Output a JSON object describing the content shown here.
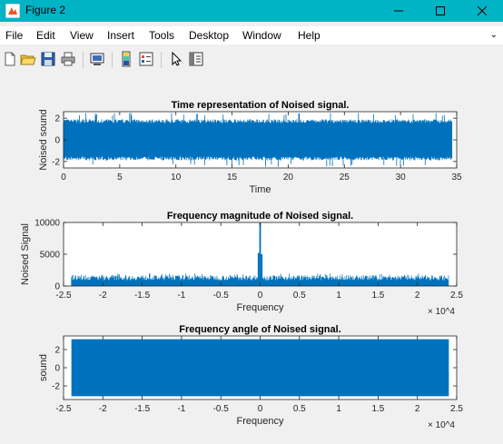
{
  "window": {
    "title": "Figure 2",
    "controls": [
      "minimize",
      "maximize",
      "close"
    ]
  },
  "menu": [
    "File",
    "Edit",
    "View",
    "Insert",
    "Tools",
    "Desktop",
    "Window",
    "Help"
  ],
  "toolbar": [
    "new-figure",
    "open-file",
    "save",
    "print",
    "print-preview",
    "insert-colorbar",
    "insert-legend",
    "edit-plot",
    "property-inspector"
  ],
  "colors": {
    "titlebar": "#00b4c5",
    "series": "#0072bd",
    "axes_bg": "#ffffff"
  },
  "chart_data": [
    {
      "type": "line",
      "title": "Time representation of Noised signal.",
      "xlabel": "Time",
      "ylabel": "Noised sound",
      "xlim": [
        0,
        35
      ],
      "ylim": [
        -2.6,
        2.6
      ],
      "xticks": [
        "0",
        "5",
        "10",
        "15",
        "20",
        "25",
        "30",
        "35"
      ],
      "yticks": [
        "-2",
        "0",
        "2"
      ],
      "series": [
        {
          "description": "dense noise",
          "x_range": [
            0,
            34.6
          ],
          "envelope_min": -2.5,
          "envelope_max": 2.5,
          "typical_band": [
            -1.9,
            1.9
          ]
        }
      ]
    },
    {
      "type": "line",
      "title": "Frequency magnitude of Noised signal.",
      "xlabel": "Frequency",
      "ylabel": "Noised Signal",
      "xlim": [
        -25000,
        25000
      ],
      "ylim": [
        0,
        10000
      ],
      "x_exponent": "× 10^4",
      "xticks": [
        "-2.5",
        "-2",
        "-1.5",
        "-1",
        "-0.5",
        "0",
        "0.5",
        "1",
        "1.5",
        "2",
        "2.5"
      ],
      "yticks": [
        "0",
        "5000",
        "10000"
      ],
      "series": [
        {
          "x_range": [
            -24000,
            24000
          ],
          "noise_floor_max": 2000,
          "peaks": [
            {
              "x": 0,
              "y": 10000
            },
            {
              "x": -200,
              "y": 5200
            },
            {
              "x": 200,
              "y": 5000
            }
          ]
        }
      ]
    },
    {
      "type": "line",
      "title": "Frequency angle of Noised signal.",
      "xlabel": "Frequency",
      "ylabel": "sound",
      "xlim": [
        -25000,
        25000
      ],
      "ylim": [
        -3.5,
        3.5
      ],
      "x_exponent": "× 10^4",
      "xticks": [
        "-2.5",
        "-2",
        "-1.5",
        "-1",
        "-0.5",
        "0",
        "0.5",
        "1",
        "1.5",
        "2",
        "2.5"
      ],
      "yticks": [
        "-2",
        "0",
        "2"
      ],
      "series": [
        {
          "x_range": [
            -24000,
            24000
          ],
          "min": -3.14,
          "max": 3.14
        }
      ]
    }
  ]
}
